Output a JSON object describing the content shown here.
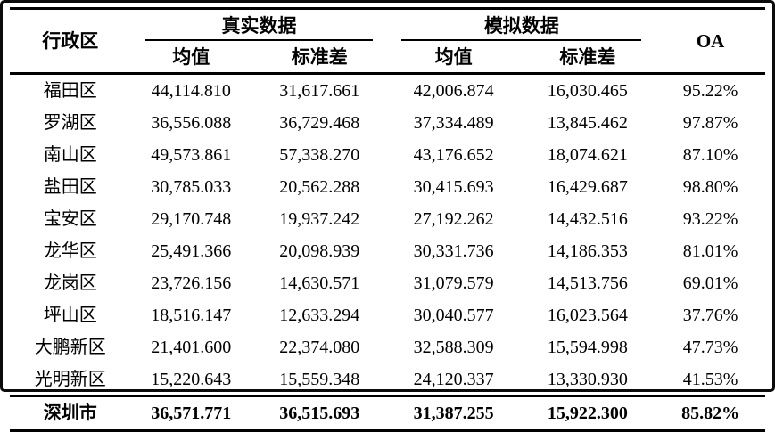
{
  "table": {
    "headers": {
      "district": "行政区",
      "group_real": "真实数据",
      "group_sim": "模拟数据",
      "oa": "OA",
      "mean": "均值",
      "std": "标准差"
    },
    "rows": [
      {
        "district": "福田区",
        "real_mean": "44,114.810",
        "real_std": "31,617.661",
        "sim_mean": "42,006.874",
        "sim_std": "16,030.465",
        "oa": "95.22%"
      },
      {
        "district": "罗湖区",
        "real_mean": "36,556.088",
        "real_std": "36,729.468",
        "sim_mean": "37,334.489",
        "sim_std": "13,845.462",
        "oa": "97.87%"
      },
      {
        "district": "南山区",
        "real_mean": "49,573.861",
        "real_std": "57,338.270",
        "sim_mean": "43,176.652",
        "sim_std": "18,074.621",
        "oa": "87.10%"
      },
      {
        "district": "盐田区",
        "real_mean": "30,785.033",
        "real_std": "20,562.288",
        "sim_mean": "30,415.693",
        "sim_std": "16,429.687",
        "oa": "98.80%"
      },
      {
        "district": "宝安区",
        "real_mean": "29,170.748",
        "real_std": "19,937.242",
        "sim_mean": "27,192.262",
        "sim_std": "14,432.516",
        "oa": "93.22%"
      },
      {
        "district": "龙华区",
        "real_mean": "25,491.366",
        "real_std": "20,098.939",
        "sim_mean": "30,331.736",
        "sim_std": "14,186.353",
        "oa": "81.01%"
      },
      {
        "district": "龙岗区",
        "real_mean": "23,726.156",
        "real_std": "14,630.571",
        "sim_mean": "31,079.579",
        "sim_std": "14,513.756",
        "oa": "69.01%"
      },
      {
        "district": "坪山区",
        "real_mean": "18,516.147",
        "real_std": "12,633.294",
        "sim_mean": "30,040.577",
        "sim_std": "16,023.564",
        "oa": "37.76%"
      },
      {
        "district": "大鹏新区",
        "real_mean": "21,401.600",
        "real_std": "22,374.080",
        "sim_mean": "32,588.309",
        "sim_std": "15,594.998",
        "oa": "47.73%"
      },
      {
        "district": "光明新区",
        "real_mean": "15,220.643",
        "real_std": "15,559.348",
        "sim_mean": "24,120.337",
        "sim_std": "13,330.930",
        "oa": "41.53%"
      }
    ],
    "total": {
      "district": "深圳市",
      "real_mean": "36,571.771",
      "real_std": "36,515.693",
      "sim_mean": "31,387.255",
      "sim_std": "15,922.300",
      "oa": "85.82%"
    }
  }
}
